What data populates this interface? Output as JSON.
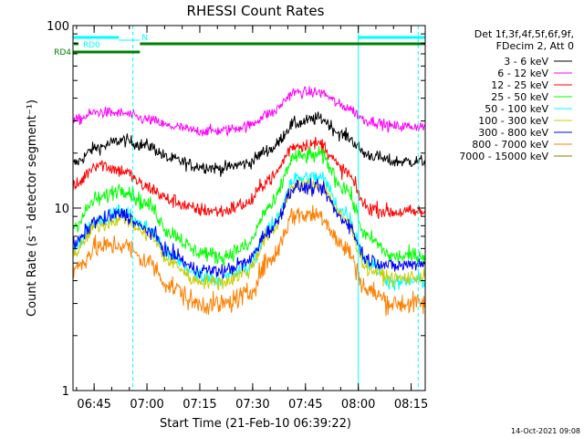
{
  "chart_data": {
    "type": "line",
    "title": "RHESSI Count Rates",
    "xlabel": "Start Time (21-Feb-10 06:39:22)",
    "ylabel": "Count Rate (s⁻¹ detector segment⁻¹)",
    "x_range_min": [
      0,
      100
    ],
    "ylim": [
      1,
      100
    ],
    "y_scale": "log",
    "grid": false,
    "legend_position": "right",
    "legend_header": [
      "Det 1f,3f,4f,5f,6f,9f,",
      "FDecim 2, Att 0"
    ],
    "x_ticks": [
      {
        "label": "06:45",
        "t": 6
      },
      {
        "label": "07:00",
        "t": 21
      },
      {
        "label": "07:15",
        "t": 36
      },
      {
        "label": "07:30",
        "t": 51
      },
      {
        "label": "07:45",
        "t": 66
      },
      {
        "label": "08:00",
        "t": 81
      },
      {
        "label": "08:15",
        "t": 96
      }
    ],
    "y_ticks": [
      {
        "label": "1",
        "value": 1
      },
      {
        "label": "10",
        "value": 10
      },
      {
        "label": "100",
        "value": 100
      }
    ],
    "x_knots": [
      0,
      7,
      14,
      21,
      28,
      35,
      42,
      49,
      56,
      63,
      70,
      77,
      84,
      91,
      99
    ],
    "series": [
      {
        "name": "3 - 6 keV",
        "color": "#000000",
        "noise": 0.035,
        "values": [
          17.5,
          21.5,
          23.5,
          22,
          18.5,
          17,
          16.5,
          17.5,
          21,
          29,
          31,
          25,
          19.5,
          18,
          18
        ]
      },
      {
        "name": "6 - 12 keV",
        "color": "#ff00ff",
        "noise": 0.03,
        "values": [
          30,
          33.5,
          33,
          30.5,
          28,
          26.5,
          26.5,
          28,
          33,
          43,
          43,
          36,
          30,
          28,
          28
        ]
      },
      {
        "name": "12 - 25 keV",
        "color": "#ff0000",
        "noise": 0.04,
        "values": [
          13,
          17.5,
          16,
          13,
          11,
          9.8,
          9.6,
          10.5,
          14.5,
          22,
          22.5,
          16,
          10,
          9.5,
          9.5
        ]
      },
      {
        "name": "25 - 50 keV",
        "color": "#00ff00",
        "noise": 0.045,
        "values": [
          8,
          11.2,
          12.8,
          10.5,
          7.3,
          5.8,
          5.4,
          6.1,
          10.2,
          19,
          19.5,
          13,
          6.8,
          5.4,
          5.5
        ]
      },
      {
        "name": "50 - 100 keV",
        "color": "#00ffff",
        "noise": 0.045,
        "values": [
          6,
          8.6,
          9.6,
          7.8,
          5.4,
          4.3,
          4.1,
          4.6,
          7.7,
          14.5,
          14.8,
          9.5,
          5,
          3.9,
          4
        ]
      },
      {
        "name": "100 - 300 keV",
        "color": "#cccc00",
        "noise": 0.04,
        "values": [
          5.6,
          8,
          8.8,
          7.2,
          5,
          4,
          3.9,
          4.4,
          7.2,
          13.2,
          13.4,
          8.8,
          4.6,
          4.1,
          4.2
        ]
      },
      {
        "name": "300 - 800 keV",
        "color": "#0000ff",
        "noise": 0.04,
        "values": [
          6.3,
          8.6,
          9.3,
          7.6,
          5.6,
          4.6,
          4.5,
          5,
          7.6,
          13,
          12.8,
          8.6,
          5.2,
          4.8,
          5
        ]
      },
      {
        "name": "800 - 7000 keV",
        "color": "#ff8000",
        "noise": 0.06,
        "values": [
          4.6,
          6.1,
          6.3,
          5.1,
          3.7,
          3,
          2.95,
          3.3,
          5.2,
          9.2,
          9.2,
          6.1,
          3.5,
          3,
          3
        ]
      },
      {
        "name": "7000 - 15000 keV",
        "color": "#808000",
        "noise": 0,
        "values": []
      }
    ],
    "annotations": {
      "rd0": {
        "label": "RD0",
        "color": "#00ffff",
        "t_start": 0,
        "t_end": 13,
        "gap_end": 19,
        "resume_start": 81,
        "resume_end": 100
      },
      "n_marker": {
        "label": "N",
        "color": "#00ffff",
        "t": 19
      },
      "rd4": {
        "label": "RD4",
        "color": "#008000",
        "t_start": 0,
        "t_end": 19
      },
      "green_bar": {
        "color": "#008000",
        "t_start": 19,
        "t_end": 100
      },
      "vlines": [
        {
          "t": 17,
          "style": "dashed",
          "color": "#00ffff"
        },
        {
          "t": 81,
          "style": "solid",
          "color": "#00ffff"
        },
        {
          "t": 98,
          "style": "dashed",
          "color": "#00ffff"
        }
      ]
    },
    "footer_date": "14-Oct-2021 09:08"
  }
}
